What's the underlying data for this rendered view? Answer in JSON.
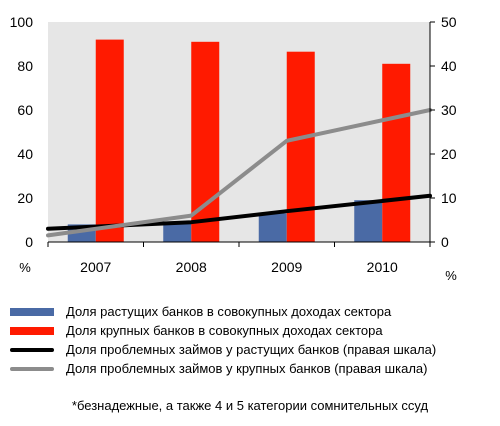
{
  "chart_data": {
    "type": "bar",
    "categories": [
      "2007",
      "2008",
      "2009",
      "2010"
    ],
    "series": [
      {
        "name": "Доля растущих банков в совокупных доходах сектора",
        "kind": "bar",
        "axis": "left",
        "color": "#4a6aa5",
        "values": [
          8,
          9,
          13,
          19
        ]
      },
      {
        "name": "Доля крупных банков в совокупных доходах сектора",
        "kind": "bar",
        "axis": "left",
        "color": "#ff1a00",
        "values": [
          92,
          91,
          86.5,
          81
        ]
      },
      {
        "name": "Доля проблемных займов у растущих банков (правая шкала)",
        "kind": "line",
        "axis": "right",
        "color": "#000000",
        "values": [
          3,
          4.5,
          7,
          10.5
        ]
      },
      {
        "name": "Доля проблемных займов у крупных банков (правая шкала)",
        "kind": "line",
        "axis": "right",
        "color": "#8c8c8c",
        "values": [
          1.5,
          6,
          23,
          30
        ]
      }
    ],
    "ylim_left": [
      0,
      100
    ],
    "yticks_left": [
      "0",
      "20",
      "40",
      "60",
      "80",
      "100"
    ],
    "ylim_right": [
      0,
      50
    ],
    "yticks_right": [
      "0",
      "10",
      "20",
      "30",
      "40",
      "50"
    ],
    "left_unit": "%",
    "right_unit": "%",
    "plot_background": "#e6e6e6",
    "grid": false,
    "legend_placement": "bottom"
  },
  "footnote": "*безнадежные, а также 4 и 5 категории сомнительных ссуд"
}
